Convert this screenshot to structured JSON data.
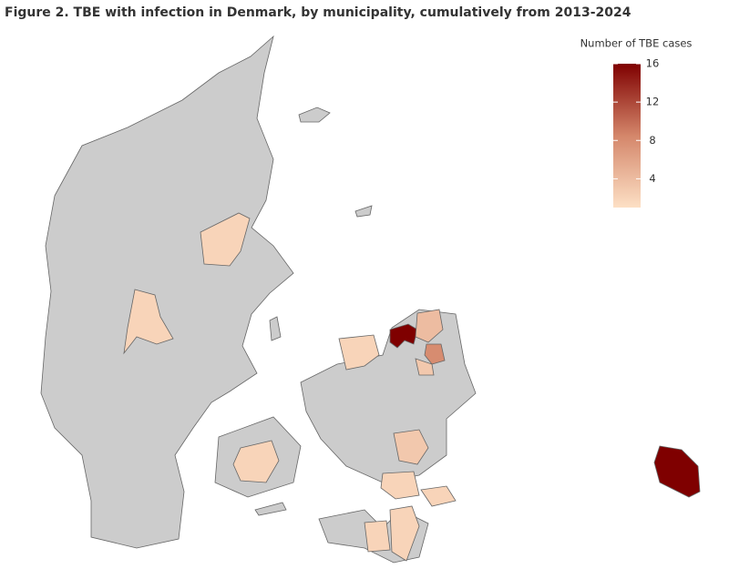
{
  "title": "Figure 2. TBE with infection in Denmark, by municipality, cumulatively from 2013-2024",
  "no_data_color": "#cccccc",
  "legend": {
    "title": "Number of TBE cases",
    "range": [
      1,
      16
    ],
    "ticks": [
      4,
      8,
      12,
      16
    ],
    "colors": [
      "#fde0c5",
      "#d4866a",
      "#7f0000"
    ]
  },
  "regions": [
    16,
    16,
    8,
    4,
    2,
    2,
    2,
    2,
    3,
    2,
    2,
    2,
    2,
    3
  ]
}
